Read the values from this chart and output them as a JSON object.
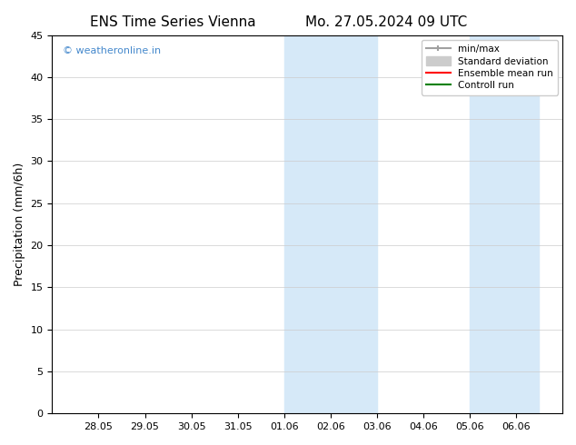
{
  "title_left": "ENS Time Series Vienna",
  "title_right": "Mo. 27.05.2024 09 UTC",
  "ylabel": "Precipitation (mm/6h)",
  "ylim": [
    0,
    45
  ],
  "yticks": [
    0,
    5,
    10,
    15,
    20,
    25,
    30,
    35,
    40,
    45
  ],
  "xlim_start": "2024-05-27",
  "xlim_end": "2024-06-07",
  "xtick_labels": [
    "28.05",
    "29.05",
    "30.05",
    "31.05",
    "01.06",
    "02.06",
    "03.06",
    "04.06",
    "05.06",
    "06.06"
  ],
  "shaded_bands": [
    {
      "x0": "2024-06-01",
      "x1": "2024-06-03",
      "color": "#d6e9f8"
    },
    {
      "x0": "2024-06-05",
      "x1": "2024-06-06 12:00",
      "color": "#d6e9f8"
    }
  ],
  "legend": {
    "min_max_color": "#a0a0a0",
    "std_dev_color": "#cccccc",
    "ensemble_mean_color": "#ff0000",
    "control_run_color": "#008000"
  },
  "watermark": "© weatheronline.in",
  "watermark_color": "#4488cc",
  "background_color": "#ffffff",
  "plot_bg_color": "#ffffff",
  "border_color": "#000000",
  "title_fontsize": 11,
  "axis_fontsize": 9,
  "tick_fontsize": 8
}
